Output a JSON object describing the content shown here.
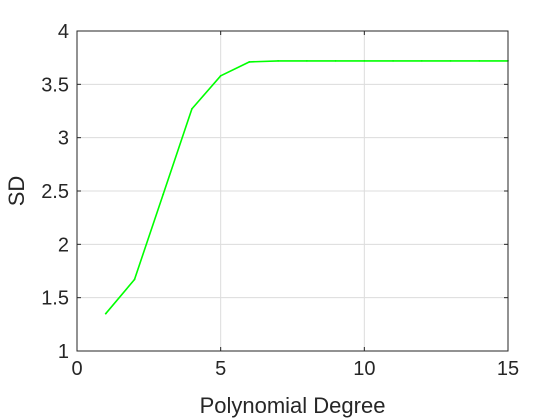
{
  "chart_data": {
    "type": "line",
    "title": "",
    "xlabel": "Polynomial Degree",
    "ylabel": "SD",
    "xlim": [
      0,
      15
    ],
    "ylim": [
      1,
      4
    ],
    "xticks": [
      0,
      5,
      10,
      15
    ],
    "yticks": [
      1,
      1.5,
      2,
      2.5,
      3,
      3.5,
      4
    ],
    "grid": true,
    "series": [
      {
        "color": "#00ff00",
        "x": [
          1,
          2,
          3,
          4,
          5,
          6,
          7,
          8,
          9,
          10,
          11,
          12,
          13,
          14,
          15
        ],
        "y": [
          1.35,
          1.67,
          2.47,
          3.27,
          3.58,
          3.71,
          3.72,
          3.72,
          3.72,
          3.72,
          3.72,
          3.72,
          3.72,
          3.72,
          3.72
        ]
      }
    ]
  }
}
